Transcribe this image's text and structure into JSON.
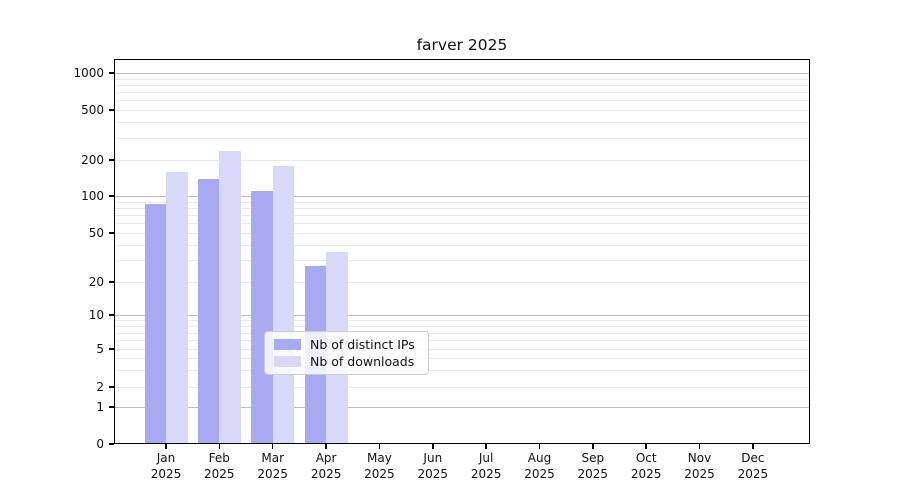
{
  "chart_data": {
    "type": "bar",
    "title": "farver 2025",
    "categories": [
      "Jan 2025",
      "Feb 2025",
      "Mar 2025",
      "Apr 2025",
      "May 2025",
      "Jun 2025",
      "Jul 2025",
      "Aug 2025",
      "Sep 2025",
      "Oct 2025",
      "Nov 2025",
      "Dec 2025"
    ],
    "series": [
      {
        "name": "Nb of distinct IPs",
        "color": "#a9a9f1",
        "values": [
          86,
          139,
          110,
          27,
          0,
          0,
          0,
          0,
          0,
          0,
          0,
          0
        ]
      },
      {
        "name": "Nb of downloads",
        "color": "#d8d8f8",
        "values": [
          160,
          235,
          177,
          35,
          0,
          0,
          0,
          0,
          0,
          0,
          0,
          0
        ]
      }
    ],
    "xlabel": "",
    "ylabel": "",
    "yscale": "log (with 0 shown at axis base)",
    "ytick_values": [
      0,
      1,
      2,
      5,
      10,
      20,
      50,
      100,
      200,
      500,
      1000
    ],
    "ylim": [
      0,
      1400
    ],
    "grid": "horizontal only; light minor log gridlines, darker lines at powers of 10",
    "legend": {
      "position": "inside, lower center-right of plot"
    },
    "colors": {
      "spine": "#000000",
      "major_gridline": "#bbbbbb",
      "minor_gridline": "#e9e9e9",
      "text": "#111111",
      "legend_border": "#cccccc"
    }
  }
}
